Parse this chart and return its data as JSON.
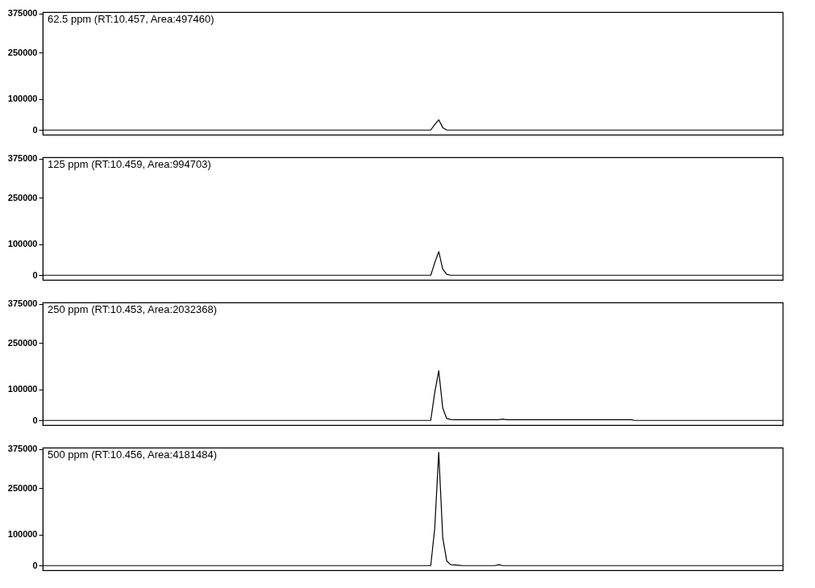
{
  "chart_data": [
    {
      "type": "line",
      "title": "62.5 ppm (RT:10.457, Area:497460)",
      "color": "#000000",
      "ylim": [
        -15000,
        380000
      ],
      "yticks": [
        0,
        100000,
        250000,
        375000
      ],
      "tick_labels": "y",
      "categories": [
        null,
        null,
        null,
        null,
        null,
        null,
        null,
        null,
        null,
        null,
        null,
        null,
        null,
        null,
        null,
        null,
        null,
        null,
        null,
        null,
        null,
        null,
        null,
        null,
        null,
        null,
        null,
        null,
        null,
        null,
        null,
        null,
        null,
        null,
        null,
        null,
        null,
        null,
        null,
        null,
        null,
        null,
        null,
        null,
        null,
        null,
        null,
        null,
        null,
        null,
        null,
        null,
        null,
        null,
        null,
        null,
        null,
        null,
        null,
        null,
        null,
        null,
        null,
        null,
        null,
        null,
        null,
        null,
        null,
        null,
        null,
        null,
        null,
        null,
        null,
        null,
        null,
        null,
        null,
        null,
        null,
        null,
        null,
        null,
        null,
        null,
        null,
        null,
        null,
        null,
        null,
        null,
        null,
        null,
        null,
        null,
        null,
        null,
        null,
        null,
        null,
        null,
        null,
        null,
        null,
        null,
        null,
        null,
        null,
        null,
        null,
        null,
        null,
        null,
        null,
        null,
        null,
        null,
        null,
        null,
        null,
        null,
        null,
        null,
        null,
        null,
        null,
        null,
        null,
        null,
        null,
        null,
        null,
        null,
        null,
        null,
        null,
        null,
        null,
        null,
        null,
        null,
        null,
        null,
        null,
        null,
        null,
        null,
        null,
        null,
        null,
        null,
        null,
        null,
        null,
        null,
        null,
        null,
        null,
        null,
        null,
        null,
        null,
        null,
        null,
        null,
        null,
        null,
        null,
        null,
        null,
        null,
        null,
        null,
        null,
        null,
        null,
        null,
        null,
        null,
        null,
        null,
        null,
        null,
        null,
        null
      ],
      "values": [
        0,
        0,
        0,
        0,
        0,
        0,
        0,
        0,
        0,
        0,
        0,
        0,
        0,
        0,
        0,
        0,
        0,
        0,
        0,
        0,
        0,
        0,
        0,
        0,
        0,
        0,
        0,
        0,
        0,
        0,
        0,
        0,
        0,
        0,
        0,
        0,
        0,
        0,
        0,
        0,
        0,
        0,
        0,
        0,
        0,
        0,
        0,
        0,
        0,
        0,
        0,
        0,
        0,
        0,
        0,
        0,
        0,
        0,
        0,
        0,
        0,
        0,
        0,
        0,
        0,
        0,
        0,
        0,
        0,
        0,
        0,
        0,
        0,
        0,
        0,
        0,
        0,
        0,
        0,
        0,
        0,
        0,
        0,
        0,
        0,
        0,
        0,
        0,
        0,
        0,
        0,
        0,
        0,
        0,
        0,
        0,
        0,
        0,
        18000,
        33000,
        8000,
        0,
        0,
        0,
        0,
        0,
        0,
        0,
        0,
        0,
        0,
        0,
        0,
        0,
        0,
        0,
        0,
        0,
        0,
        0,
        0,
        0,
        0,
        0,
        0,
        0,
        0,
        0,
        0,
        0,
        0,
        0,
        0,
        0,
        0,
        0,
        0,
        0,
        0,
        0,
        0,
        0,
        0,
        0,
        0,
        0,
        0,
        0,
        0,
        0,
        0,
        0,
        0,
        0,
        0,
        0,
        0,
        0,
        0,
        0,
        0,
        0,
        0,
        0,
        0,
        0,
        0,
        0,
        0,
        0,
        0,
        0,
        0,
        0,
        0,
        0,
        0,
        0,
        0,
        0,
        0,
        0,
        0,
        0,
        0,
        0
      ]
    },
    {
      "type": "line",
      "title": "125 ppm (RT:10.459, Area:994703)",
      "color": "#000000",
      "ylim": [
        -15000,
        380000
      ],
      "yticks": [
        0,
        100000,
        250000,
        375000
      ],
      "tick_labels": "y",
      "categories": [
        null,
        null,
        null,
        null,
        null,
        null,
        null,
        null,
        null,
        null,
        null,
        null,
        null,
        null,
        null,
        null,
        null,
        null,
        null,
        null,
        null,
        null,
        null,
        null,
        null,
        null,
        null,
        null,
        null,
        null,
        null,
        null,
        null,
        null,
        null,
        null,
        null,
        null,
        null,
        null,
        null,
        null,
        null,
        null,
        null,
        null,
        null,
        null,
        null,
        null,
        null,
        null,
        null,
        null,
        null,
        null,
        null,
        null,
        null,
        null,
        null,
        null,
        null,
        null,
        null,
        null,
        null,
        null,
        null,
        null,
        null,
        null,
        null,
        null,
        null,
        null,
        null,
        null,
        null,
        null,
        null,
        null,
        null,
        null,
        null,
        null,
        null,
        null,
        null,
        null,
        null,
        null,
        null,
        null,
        null,
        null,
        null,
        null,
        null,
        null,
        null,
        null,
        null,
        null,
        null,
        null,
        null,
        null,
        null,
        null,
        null,
        null,
        null,
        null,
        null,
        null,
        null,
        null,
        null,
        null,
        null,
        null,
        null,
        null,
        null,
        null,
        null,
        null,
        null,
        null,
        null,
        null,
        null,
        null,
        null,
        null,
        null,
        null,
        null,
        null,
        null,
        null,
        null,
        null,
        null,
        null,
        null,
        null,
        null,
        null,
        null,
        null,
        null,
        null,
        null,
        null,
        null,
        null,
        null,
        null,
        null,
        null,
        null,
        null,
        null,
        null,
        null,
        null,
        null,
        null,
        null,
        null,
        null,
        null,
        null,
        null,
        null,
        null,
        null,
        null,
        null,
        null,
        null,
        null,
        null,
        null
      ],
      "values": [
        0,
        0,
        0,
        0,
        0,
        0,
        0,
        0,
        0,
        0,
        0,
        0,
        0,
        0,
        0,
        0,
        0,
        0,
        0,
        0,
        0,
        0,
        0,
        0,
        0,
        0,
        0,
        0,
        0,
        0,
        0,
        0,
        0,
        0,
        0,
        0,
        0,
        0,
        0,
        0,
        0,
        0,
        0,
        0,
        0,
        0,
        0,
        0,
        0,
        0,
        0,
        0,
        0,
        0,
        0,
        0,
        0,
        0,
        0,
        0,
        0,
        0,
        0,
        0,
        0,
        0,
        0,
        0,
        0,
        0,
        0,
        0,
        0,
        0,
        0,
        0,
        0,
        0,
        0,
        0,
        0,
        0,
        0,
        0,
        0,
        0,
        0,
        0,
        0,
        0,
        0,
        0,
        0,
        0,
        0,
        0,
        0,
        0,
        40000,
        76000,
        20000,
        3000,
        0,
        0,
        0,
        0,
        0,
        0,
        0,
        0,
        0,
        0,
        0,
        0,
        0,
        0,
        0,
        0,
        0,
        0,
        0,
        0,
        0,
        0,
        0,
        0,
        0,
        0,
        0,
        0,
        0,
        0,
        0,
        0,
        0,
        0,
        0,
        0,
        0,
        0,
        0,
        0,
        0,
        0,
        0,
        0,
        0,
        0,
        0,
        0,
        0,
        0,
        0,
        0,
        0,
        0,
        0,
        0,
        0,
        0,
        0,
        0,
        0,
        0,
        0,
        0,
        0,
        0,
        0,
        0,
        0,
        0,
        0,
        0,
        0,
        0,
        0,
        0,
        0,
        0,
        0,
        0,
        0,
        0,
        0,
        0
      ]
    },
    {
      "type": "line",
      "title": "250 ppm (RT:10.453, Area:2032368)",
      "color": "#000000",
      "ylim": [
        -15000,
        380000
      ],
      "yticks": [
        0,
        100000,
        250000,
        375000
      ],
      "tick_labels": "y",
      "categories": [
        null,
        null,
        null,
        null,
        null,
        null,
        null,
        null,
        null,
        null,
        null,
        null,
        null,
        null,
        null,
        null,
        null,
        null,
        null,
        null,
        null,
        null,
        null,
        null,
        null,
        null,
        null,
        null,
        null,
        null,
        null,
        null,
        null,
        null,
        null,
        null,
        null,
        null,
        null,
        null,
        null,
        null,
        null,
        null,
        null,
        null,
        null,
        null,
        null,
        null,
        null,
        null,
        null,
        null,
        null,
        null,
        null,
        null,
        null,
        null,
        null,
        null,
        null,
        null,
        null,
        null,
        null,
        null,
        null,
        null,
        null,
        null,
        null,
        null,
        null,
        null,
        null,
        null,
        null,
        null,
        null,
        null,
        null,
        null,
        null,
        null,
        null,
        null,
        null,
        null,
        null,
        null,
        null,
        null,
        null,
        null,
        null,
        null,
        null,
        null,
        null,
        null,
        null,
        null,
        null,
        null,
        null,
        null,
        null,
        null,
        null,
        null,
        null,
        null,
        null,
        null,
        null,
        null,
        null,
        null,
        null,
        null,
        null,
        null,
        null,
        null,
        null,
        null,
        null,
        null,
        null,
        null,
        null,
        null,
        null,
        null,
        null,
        null,
        null,
        null,
        null,
        null,
        null,
        null,
        null,
        null,
        null,
        null,
        null,
        null,
        null,
        null,
        null,
        null,
        null,
        null,
        null,
        null,
        null,
        null,
        null,
        null,
        null,
        null,
        null,
        null,
        null,
        null,
        null,
        null,
        null,
        null,
        null,
        null,
        null,
        null,
        null,
        null,
        null,
        null,
        null,
        null,
        null,
        null,
        null,
        null
      ],
      "values": [
        0,
        0,
        0,
        0,
        0,
        0,
        0,
        0,
        0,
        0,
        0,
        0,
        0,
        0,
        0,
        0,
        0,
        0,
        0,
        0,
        0,
        0,
        0,
        0,
        0,
        0,
        0,
        0,
        0,
        0,
        0,
        0,
        0,
        0,
        0,
        0,
        0,
        0,
        0,
        0,
        0,
        0,
        0,
        0,
        0,
        0,
        0,
        0,
        0,
        0,
        0,
        0,
        0,
        0,
        0,
        0,
        0,
        0,
        0,
        0,
        0,
        0,
        0,
        0,
        0,
        0,
        0,
        0,
        0,
        0,
        0,
        0,
        0,
        0,
        0,
        0,
        0,
        0,
        0,
        0,
        0,
        0,
        0,
        0,
        0,
        0,
        0,
        0,
        0,
        0,
        0,
        0,
        0,
        0,
        0,
        0,
        0,
        0,
        90000,
        160000,
        40000,
        6000,
        3000,
        2000,
        2000,
        2000,
        2000,
        2000,
        2000,
        2000,
        2000,
        2000,
        2000,
        2000,
        2000,
        4000,
        2000,
        2000,
        2000,
        2000,
        2000,
        2000,
        2000,
        2000,
        2000,
        2000,
        2000,
        2000,
        2000,
        2000,
        2000,
        2000,
        2000,
        2000,
        2000,
        2000,
        2000,
        2000,
        2000,
        2000,
        2000,
        2000,
        2000,
        2000,
        2000,
        2000,
        2000,
        2000,
        0,
        0,
        0,
        0,
        0,
        0,
        0,
        0,
        0,
        0,
        0,
        0,
        0,
        0,
        0,
        0,
        0,
        0,
        0,
        0,
        0,
        0,
        0,
        0,
        0,
        0,
        0,
        0,
        0,
        0,
        0,
        0,
        0,
        0,
        0,
        0,
        0,
        0
      ]
    },
    {
      "type": "line",
      "title": "500 ppm (RT:10.456, Area:4181484)",
      "color": "#000000",
      "ylim": [
        -15000,
        380000
      ],
      "yticks": [
        0,
        100000,
        250000,
        375000
      ],
      "tick_labels": "y",
      "categories": [
        null,
        null,
        null,
        null,
        null,
        null,
        null,
        null,
        null,
        null,
        null,
        null,
        null,
        null,
        null,
        null,
        null,
        null,
        null,
        null,
        null,
        null,
        null,
        null,
        null,
        null,
        null,
        null,
        null,
        null,
        null,
        null,
        null,
        null,
        null,
        null,
        null,
        null,
        null,
        null,
        null,
        null,
        null,
        null,
        null,
        null,
        null,
        null,
        null,
        null,
        null,
        null,
        null,
        null,
        null,
        null,
        null,
        null,
        null,
        null,
        null,
        null,
        null,
        null,
        null,
        null,
        null,
        null,
        null,
        null,
        null,
        null,
        null,
        null,
        null,
        null,
        null,
        null,
        null,
        null,
        null,
        null,
        null,
        null,
        null,
        null,
        null,
        null,
        null,
        null,
        null,
        null,
        null,
        null,
        null,
        null,
        null,
        null,
        null,
        null,
        null,
        null,
        null,
        null,
        null,
        null,
        null,
        null,
        null,
        null,
        null,
        null,
        null,
        null,
        null,
        null,
        null,
        null,
        null,
        null,
        null,
        null,
        null,
        null,
        null,
        null,
        null,
        null,
        null,
        null,
        null,
        null,
        null,
        null,
        null,
        null,
        null,
        null,
        null,
        null,
        null,
        null,
        null,
        null,
        null,
        null,
        null,
        null,
        null,
        null,
        null,
        null,
        null,
        null,
        null,
        null,
        null,
        null,
        null,
        null,
        null,
        null,
        null,
        null,
        null,
        null,
        null,
        null,
        null,
        null,
        null,
        null,
        null,
        null,
        null,
        null,
        null,
        null,
        null,
        null,
        null,
        null,
        null,
        null,
        null,
        null
      ],
      "values": [
        0,
        0,
        0,
        0,
        0,
        0,
        0,
        0,
        0,
        0,
        0,
        0,
        0,
        0,
        0,
        0,
        0,
        0,
        0,
        0,
        0,
        0,
        0,
        0,
        0,
        0,
        0,
        0,
        0,
        0,
        0,
        0,
        0,
        0,
        0,
        0,
        0,
        0,
        0,
        0,
        0,
        0,
        0,
        0,
        0,
        0,
        0,
        0,
        0,
        0,
        0,
        0,
        0,
        0,
        0,
        0,
        0,
        0,
        0,
        0,
        0,
        0,
        0,
        0,
        0,
        0,
        0,
        0,
        0,
        0,
        0,
        0,
        0,
        0,
        0,
        0,
        0,
        0,
        0,
        0,
        0,
        0,
        0,
        0,
        0,
        0,
        0,
        0,
        0,
        0,
        0,
        0,
        0,
        0,
        0,
        0,
        0,
        0,
        120000,
        365000,
        90000,
        15000,
        3000,
        2000,
        1000,
        0,
        0,
        0,
        0,
        0,
        0,
        0,
        0,
        0,
        3000,
        0,
        0,
        0,
        0,
        0,
        0,
        0,
        0,
        0,
        0,
        0,
        0,
        0,
        0,
        0,
        0,
        0,
        0,
        0,
        0,
        0,
        0,
        0,
        0,
        0,
        0,
        0,
        0,
        0,
        0,
        0,
        0,
        0,
        0,
        0,
        0,
        0,
        0,
        0,
        0,
        0,
        0,
        0,
        0,
        0,
        0,
        0,
        0,
        0,
        0,
        0,
        0,
        0,
        0,
        0,
        0,
        0,
        0,
        0,
        0,
        0,
        0,
        0,
        0,
        0,
        0,
        0,
        0,
        0,
        0,
        0
      ]
    }
  ]
}
